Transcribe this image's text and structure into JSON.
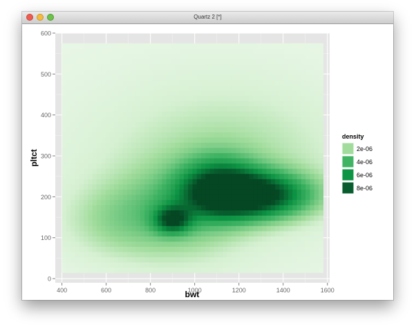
{
  "window": {
    "title": "Quartz 2 [*]"
  },
  "chart_data": {
    "type": "heatmap",
    "title": "",
    "xlabel": "bwt",
    "ylabel": "pltct",
    "xlim": [
      370,
      1610
    ],
    "ylim": [
      -10,
      600
    ],
    "x_ticks": [
      400,
      600,
      800,
      1000,
      1200,
      1400,
      1600
    ],
    "y_ticks": [
      0,
      100,
      200,
      300,
      400,
      500,
      600
    ],
    "raster_extent": {
      "x": [
        400,
        1580
      ],
      "y": [
        15,
        575
      ]
    },
    "background": "#e5e5e5",
    "grid": true,
    "legend": {
      "title": "density",
      "position": "right",
      "entries": [
        {
          "label": "2e-06",
          "color": "#a1dc9c"
        },
        {
          "label": "4e-06",
          "color": "#41b464"
        },
        {
          "label": "6e-06",
          "color": "#0d9444"
        },
        {
          "label": "8e-06",
          "color": "#075d2d"
        }
      ]
    },
    "density_blobs": [
      {
        "x": 1270,
        "y": 205,
        "sx": 170,
        "sy": 38,
        "peak": 8.6e-06
      },
      {
        "x": 1110,
        "y": 225,
        "sx": 120,
        "sy": 50,
        "peak": 5.5e-06
      },
      {
        "x": 900,
        "y": 145,
        "sx": 55,
        "sy": 22,
        "peak": 6e-06
      },
      {
        "x": 900,
        "y": 160,
        "sx": 200,
        "sy": 75,
        "peak": 2.4e-06
      },
      {
        "x": 620,
        "y": 140,
        "sx": 160,
        "sy": 60,
        "peak": 1.1e-06
      },
      {
        "x": 1150,
        "y": 300,
        "sx": 350,
        "sy": 120,
        "peak": 1.3e-06
      },
      {
        "x": 1000,
        "y": 250,
        "sx": 700,
        "sy": 230,
        "peak": 6e-07
      }
    ]
  }
}
